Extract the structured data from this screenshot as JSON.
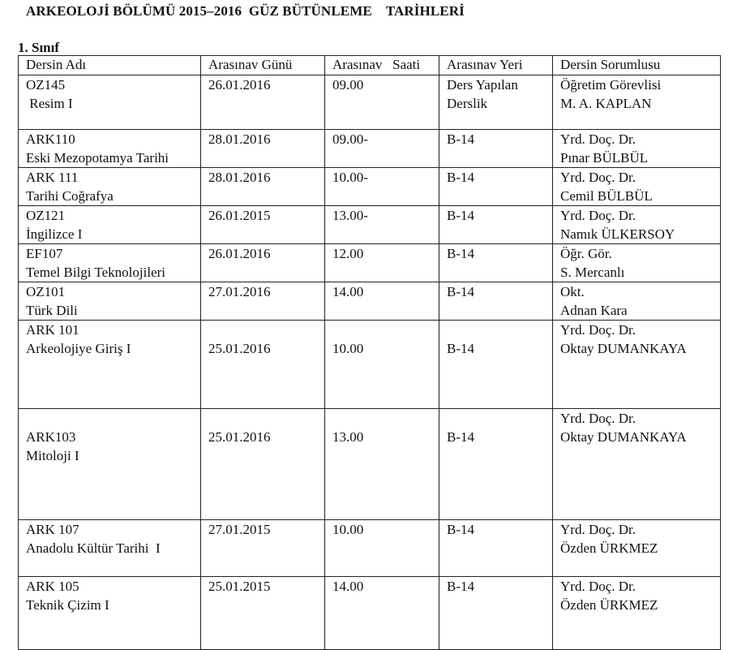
{
  "title": "ARKEOLOJİ BÖLÜMÜ 2015–2016  GÜZ BÜTÜNLEME    TARİHLERİ",
  "section": "1. Sınıf",
  "columns": [
    "Dersin Adı",
    "Arasınav Günü",
    "Arasınav   Saati",
    "Arasınav Yeri",
    "Dersin Sorumlusu"
  ],
  "rows": [
    {
      "code": "OZ145",
      "name": " Resim I",
      "date": "26.01.2016",
      "time": "09.00",
      "place": [
        "Ders Yapılan",
        "Derslik"
      ],
      "resp": [
        "Öğretim Görevlisi",
        "M. A. KAPLAN"
      ]
    },
    {
      "code": "ARK110",
      "name": "Eski Mezopotamya Tarihi",
      "date": "28.01.2016",
      "time": "09.00-",
      "place": [
        "B-14"
      ],
      "resp": [
        "Yrd. Doç. Dr.",
        "Pınar BÜLBÜL"
      ]
    },
    {
      "code": "ARK 111",
      "name": "Tarihi Coğrafya",
      "date": "28.01.2016",
      "time": "10.00-",
      "place": [
        "B-14"
      ],
      "resp": [
        "Yrd. Doç. Dr.",
        "Cemil BÜLBÜL"
      ]
    },
    {
      "code": "OZ121",
      "name": "İngilizce I",
      "date": "26.01.2015",
      "time": "13.00-",
      "place": [
        "B-14"
      ],
      "resp": [
        "Yrd. Doç. Dr.",
        "Namık ÜLKERSOY"
      ]
    },
    {
      "code": "EF107",
      "name": "Temel Bilgi Teknolojileri",
      "date": "26.01.2016",
      "time": "12.00",
      "place": [
        "B-14"
      ],
      "resp": [
        "Öğr. Gör.",
        "S. Mercanlı"
      ]
    },
    {
      "code": "OZ101",
      "name": "Türk Dili",
      "date": "27.01.2016",
      "time": "14.00",
      "place": [
        "B-14"
      ],
      "resp": [
        "Okt.",
        "Adnan Kara"
      ]
    },
    {
      "code": "ARK 101",
      "name": "Arkeolojiye Giriş I",
      "date": "25.01.2016",
      "time": "10.00",
      "place": [
        "B-14"
      ],
      "resp": [
        "Yrd. Doç. Dr.",
        "Oktay DUMANKAYA"
      ]
    },
    {
      "code": "ARK103",
      "name": "Mitoloji I",
      "date": "25.01.2016",
      "time": "13.00",
      "place": [
        "B-14"
      ],
      "resp": [
        "Yrd. Doç. Dr.",
        "Oktay DUMANKAYA"
      ]
    },
    {
      "code": "ARK 107",
      "name": "Anadolu Kültür Tarihi  I",
      "date": "27.01.2015",
      "time": "10.00",
      "place": [
        "B-14"
      ],
      "resp": [
        "Yrd. Doç. Dr.",
        "Özden ÜRKMEZ"
      ]
    },
    {
      "code": "ARK 105",
      "name": "Teknik Çizim I",
      "date": "25.01.2015",
      "time": "14.00",
      "place": [
        "B-14"
      ],
      "resp": [
        "Yrd. Doç. Dr.",
        "Özden ÜRKMEZ"
      ]
    }
  ]
}
